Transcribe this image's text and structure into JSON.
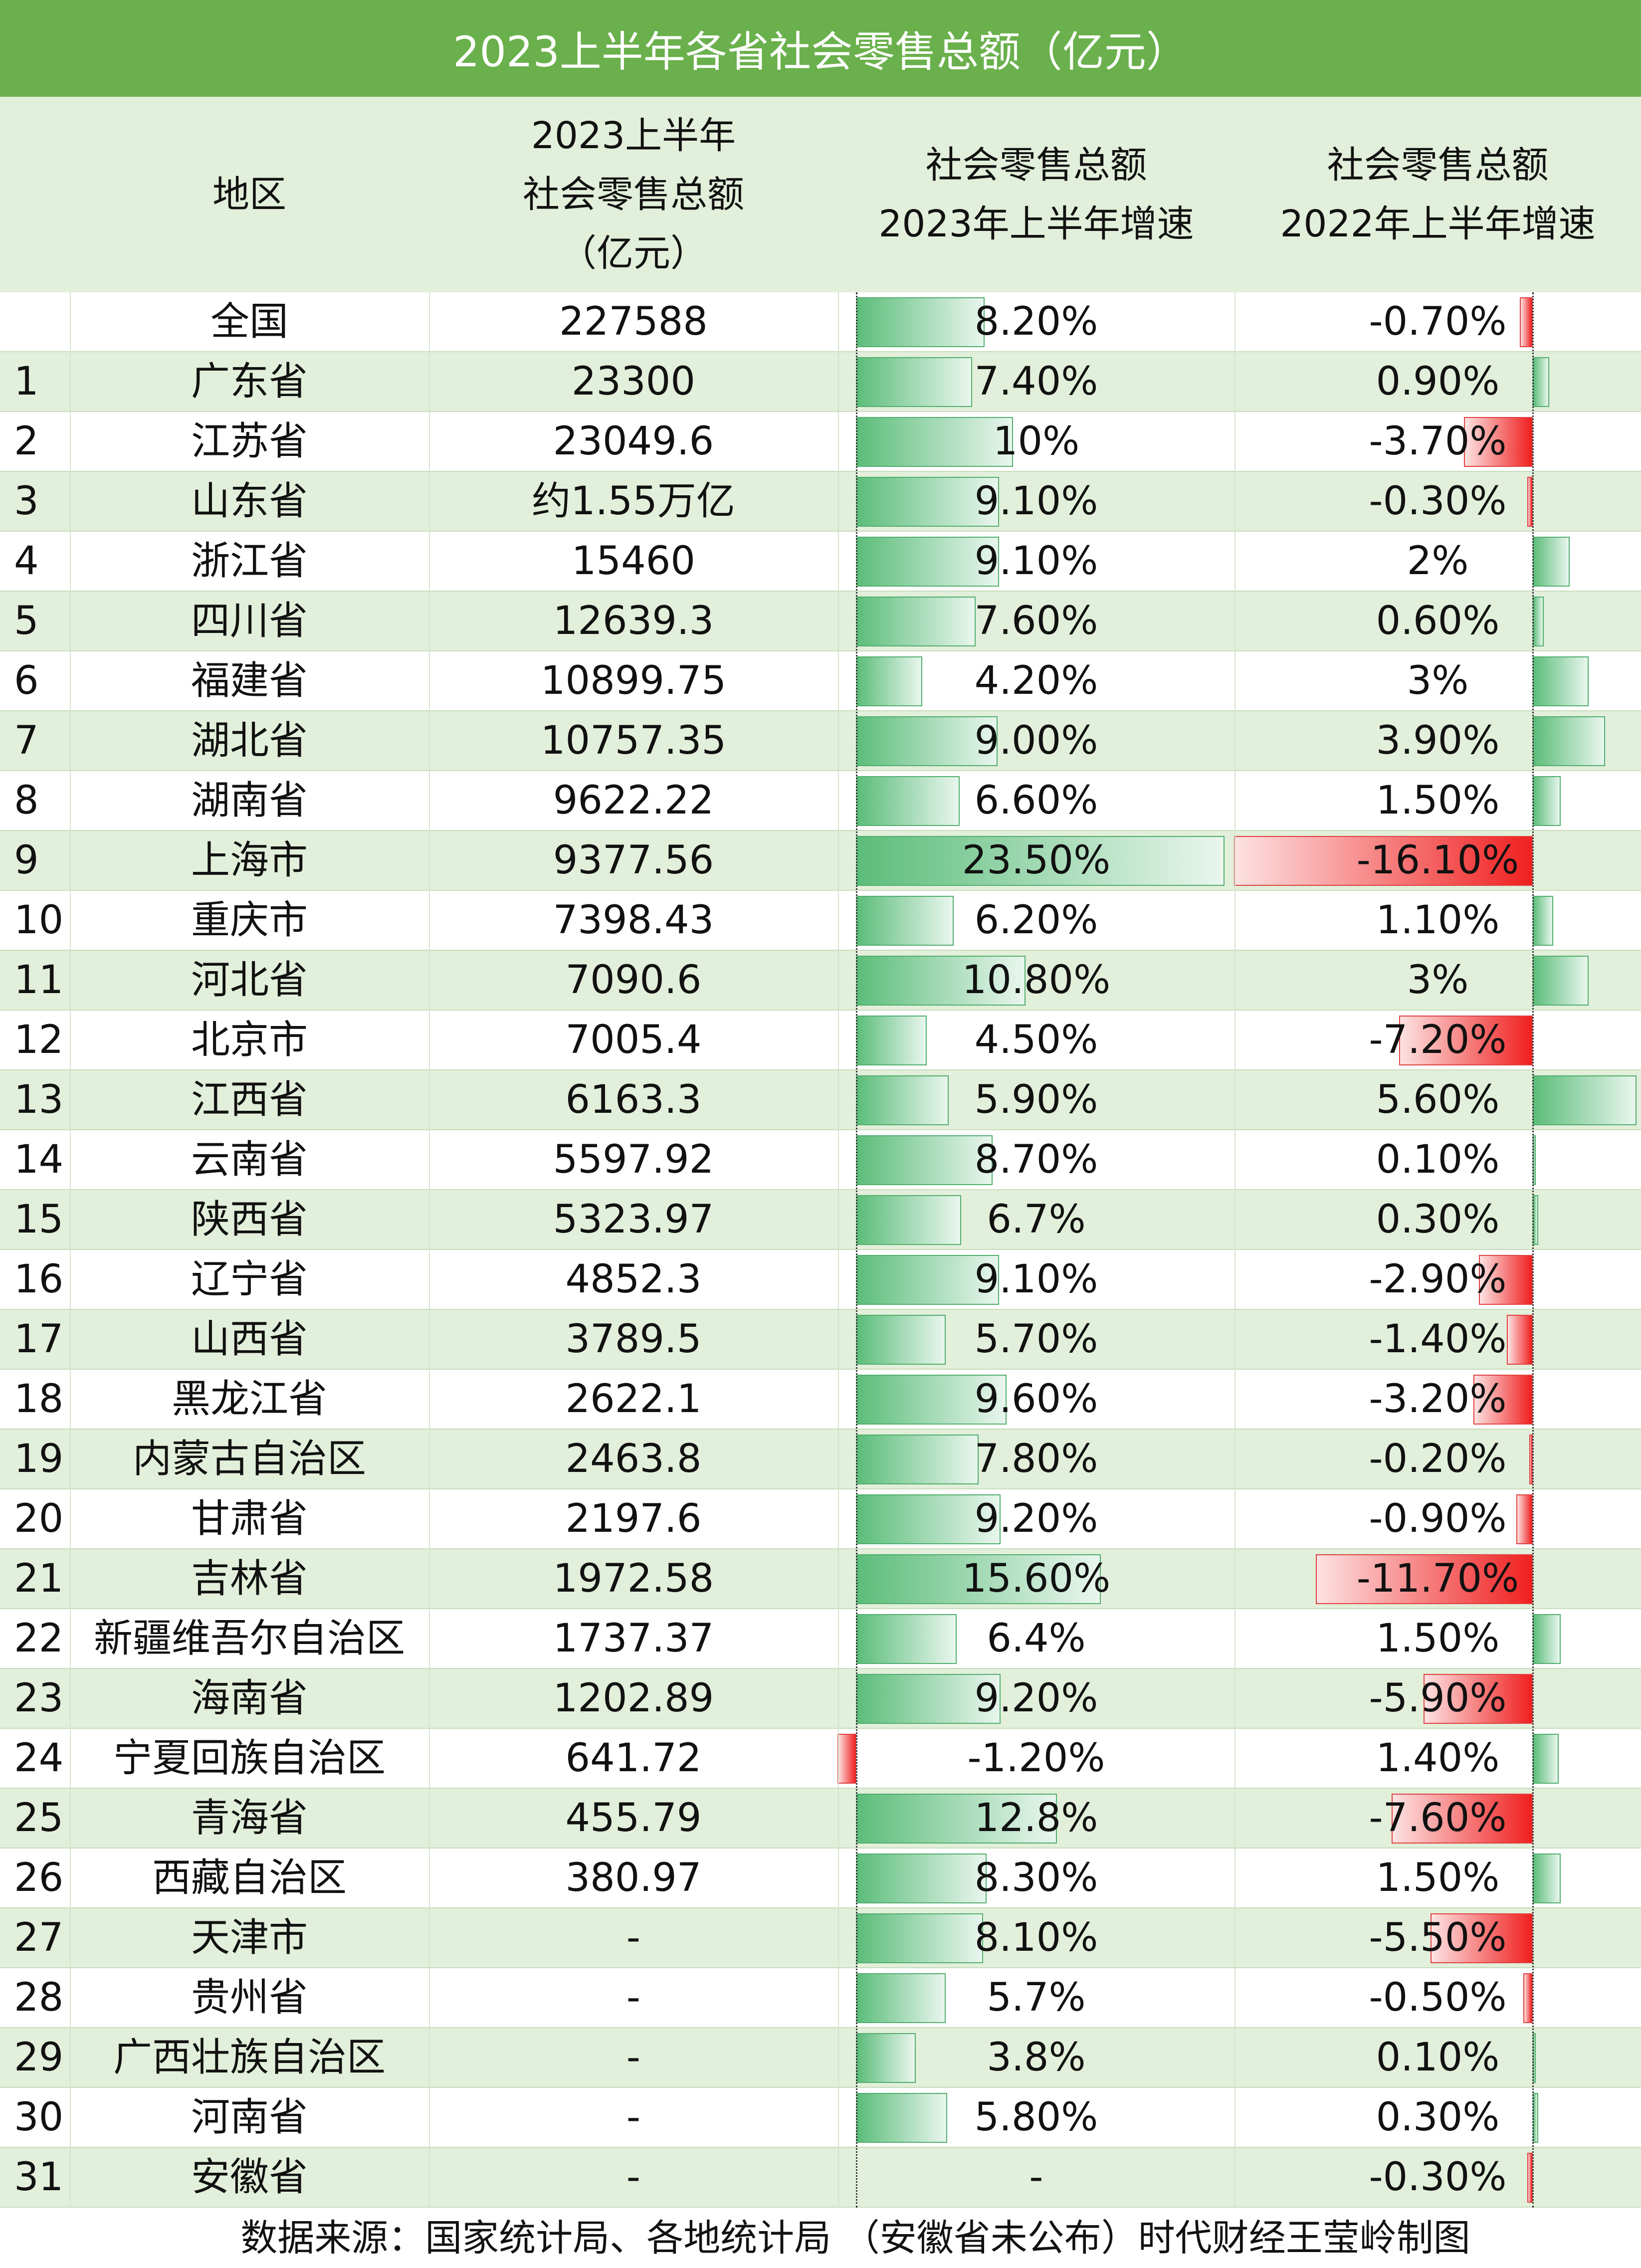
{
  "title": "2023上半年各省社会零售总额（亿元）",
  "header": {
    "region": "地区",
    "sales_l1": "2023上半年",
    "sales_l2": "社会零售总额",
    "sales_l3": "（亿元）",
    "g23_l1": "社会零售总额",
    "g23_l2": "2023年上半年增速",
    "g22_l1": "社会零售总额",
    "g22_l2": "2022年上半年增速"
  },
  "colors": {
    "title_bg": "#6ab04c",
    "stripe": "#e2efda",
    "positive_bar": "#5cbd7a",
    "negative_bar": "#f02020"
  },
  "chart_data": {
    "type": "table",
    "columns": [
      "",
      "地区",
      "2023上半年社会零售总额（亿元）",
      "社会零售总额2023年上半年增速",
      "社会零售总额2022年上半年增速"
    ],
    "rows": [
      {
        "rank": "",
        "region": "全国",
        "sales": "227588",
        "g2023": 8.2,
        "g2023_label": "8.20%",
        "g2022": -0.7,
        "g2022_label": "-0.70%"
      },
      {
        "rank": "1",
        "region": "广东省",
        "sales": "23300",
        "g2023": 7.4,
        "g2023_label": "7.40%",
        "g2022": 0.9,
        "g2022_label": "0.90%"
      },
      {
        "rank": "2",
        "region": "江苏省",
        "sales": "23049.6",
        "g2023": 10,
        "g2023_label": "10%",
        "g2022": -3.7,
        "g2022_label": "-3.70%"
      },
      {
        "rank": "3",
        "region": "山东省",
        "sales": "约1.55万亿",
        "g2023": 9.1,
        "g2023_label": "9.10%",
        "g2022": -0.3,
        "g2022_label": "-0.30%"
      },
      {
        "rank": "4",
        "region": "浙江省",
        "sales": "15460",
        "g2023": 9.1,
        "g2023_label": "9.10%",
        "g2022": 2,
        "g2022_label": "2%"
      },
      {
        "rank": "5",
        "region": "四川省",
        "sales": "12639.3",
        "g2023": 7.6,
        "g2023_label": "7.60%",
        "g2022": 0.6,
        "g2022_label": "0.60%"
      },
      {
        "rank": "6",
        "region": "福建省",
        "sales": "10899.75",
        "g2023": 4.2,
        "g2023_label": "4.20%",
        "g2022": 3,
        "g2022_label": "3%"
      },
      {
        "rank": "7",
        "region": "湖北省",
        "sales": "10757.35",
        "g2023": 9.0,
        "g2023_label": "9.00%",
        "g2022": 3.9,
        "g2022_label": "3.90%"
      },
      {
        "rank": "8",
        "region": "湖南省",
        "sales": "9622.22",
        "g2023": 6.6,
        "g2023_label": "6.60%",
        "g2022": 1.5,
        "g2022_label": "1.50%"
      },
      {
        "rank": "9",
        "region": "上海市",
        "sales": "9377.56",
        "g2023": 23.5,
        "g2023_label": "23.50%",
        "g2022": -16.1,
        "g2022_label": "-16.10%"
      },
      {
        "rank": "10",
        "region": "重庆市",
        "sales": "7398.43",
        "g2023": 6.2,
        "g2023_label": "6.20%",
        "g2022": 1.1,
        "g2022_label": "1.10%"
      },
      {
        "rank": "11",
        "region": "河北省",
        "sales": "7090.6",
        "g2023": 10.8,
        "g2023_label": "10.80%",
        "g2022": 3,
        "g2022_label": "3%"
      },
      {
        "rank": "12",
        "region": "北京市",
        "sales": "7005.4",
        "g2023": 4.5,
        "g2023_label": "4.50%",
        "g2022": -7.2,
        "g2022_label": "-7.20%"
      },
      {
        "rank": "13",
        "region": "江西省",
        "sales": "6163.3",
        "g2023": 5.9,
        "g2023_label": "5.90%",
        "g2022": 5.6,
        "g2022_label": "5.60%"
      },
      {
        "rank": "14",
        "region": "云南省",
        "sales": "5597.92",
        "g2023": 8.7,
        "g2023_label": "8.70%",
        "g2022": 0.1,
        "g2022_label": "0.10%"
      },
      {
        "rank": "15",
        "region": "陕西省",
        "sales": "5323.97",
        "g2023": 6.7,
        "g2023_label": "6.7%",
        "g2022": 0.3,
        "g2022_label": "0.30%"
      },
      {
        "rank": "16",
        "region": "辽宁省",
        "sales": "4852.3",
        "g2023": 9.1,
        "g2023_label": "9.10%",
        "g2022": -2.9,
        "g2022_label": "-2.90%"
      },
      {
        "rank": "17",
        "region": "山西省",
        "sales": "3789.5",
        "g2023": 5.7,
        "g2023_label": "5.70%",
        "g2022": -1.4,
        "g2022_label": "-1.40%"
      },
      {
        "rank": "18",
        "region": "黑龙江省",
        "sales": "2622.1",
        "g2023": 9.6,
        "g2023_label": "9.60%",
        "g2022": -3.2,
        "g2022_label": "-3.20%"
      },
      {
        "rank": "19",
        "region": "内蒙古自治区",
        "sales": "2463.8",
        "g2023": 7.8,
        "g2023_label": "7.80%",
        "g2022": -0.2,
        "g2022_label": "-0.20%"
      },
      {
        "rank": "20",
        "region": "甘肃省",
        "sales": "2197.6",
        "g2023": 9.2,
        "g2023_label": "9.20%",
        "g2022": -0.9,
        "g2022_label": "-0.90%"
      },
      {
        "rank": "21",
        "region": "吉林省",
        "sales": "1972.58",
        "g2023": 15.6,
        "g2023_label": "15.60%",
        "g2022": -11.7,
        "g2022_label": "-11.70%"
      },
      {
        "rank": "22",
        "region": "新疆维吾尔自治区",
        "sales": "1737.37",
        "g2023": 6.4,
        "g2023_label": "6.4%",
        "g2022": 1.5,
        "g2022_label": "1.50%"
      },
      {
        "rank": "23",
        "region": "海南省",
        "sales": "1202.89",
        "g2023": 9.2,
        "g2023_label": "9.20%",
        "g2022": -5.9,
        "g2022_label": "-5.90%"
      },
      {
        "rank": "24",
        "region": "宁夏回族自治区",
        "sales": "641.72",
        "g2023": -1.2,
        "g2023_label": "-1.20%",
        "g2022": 1.4,
        "g2022_label": "1.40%"
      },
      {
        "rank": "25",
        "region": "青海省",
        "sales": "455.79",
        "g2023": 12.8,
        "g2023_label": "12.8%",
        "g2022": -7.6,
        "g2022_label": "-7.60%"
      },
      {
        "rank": "26",
        "region": "西藏自治区",
        "sales": "380.97",
        "g2023": 8.3,
        "g2023_label": "8.30%",
        "g2022": 1.5,
        "g2022_label": "1.50%"
      },
      {
        "rank": "27",
        "region": "天津市",
        "sales": "-",
        "g2023": 8.1,
        "g2023_label": "8.10%",
        "g2022": -5.5,
        "g2022_label": "-5.50%"
      },
      {
        "rank": "28",
        "region": "贵州省",
        "sales": "-",
        "g2023": 5.7,
        "g2023_label": "5.7%",
        "g2022": -0.5,
        "g2022_label": "-0.50%"
      },
      {
        "rank": "29",
        "region": "广西壮族自治区",
        "sales": "-",
        "g2023": 3.8,
        "g2023_label": "3.8%",
        "g2022": 0.1,
        "g2022_label": "0.10%"
      },
      {
        "rank": "30",
        "region": "河南省",
        "sales": "-",
        "g2023": 5.8,
        "g2023_label": "5.80%",
        "g2022": 0.3,
        "g2022_label": "0.30%"
      },
      {
        "rank": "31",
        "region": "安徽省",
        "sales": "-",
        "g2023": null,
        "g2023_label": "-",
        "g2022": -0.3,
        "g2022_label": "-0.30%"
      }
    ]
  },
  "source": "数据来源：国家统计局、各地统计局 （安徽省未公布）时代财经王莹岭制图"
}
